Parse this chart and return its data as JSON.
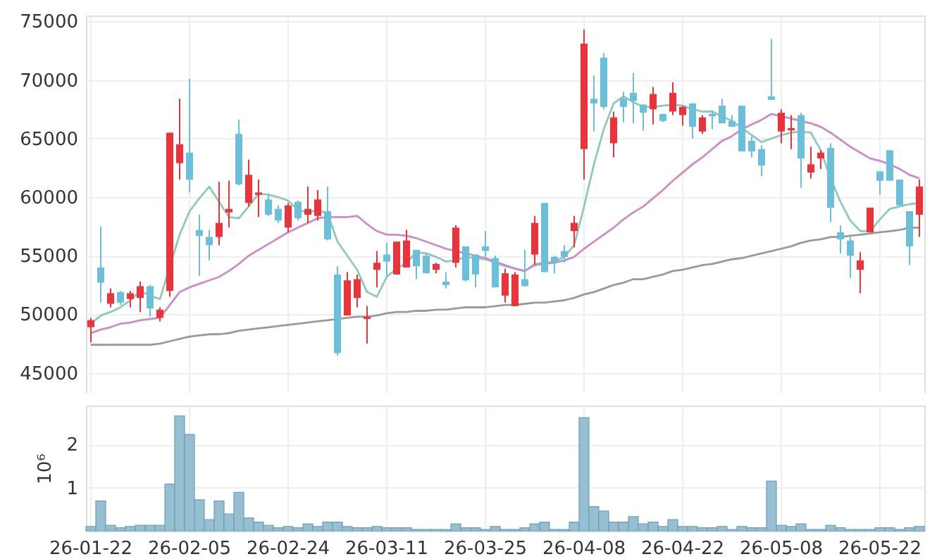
{
  "chart_data": [
    {
      "type": "candlestick",
      "ohlc": [
        [
          48900,
          49700,
          47600,
          49500
        ],
        [
          54000,
          57500,
          51000,
          52700
        ],
        [
          50900,
          52200,
          50600,
          51800
        ],
        [
          51900,
          52000,
          50800,
          51000
        ],
        [
          51300,
          52000,
          50600,
          51800
        ],
        [
          51400,
          52800,
          50200,
          52400
        ],
        [
          52400,
          52500,
          49800,
          50500
        ],
        [
          49700,
          50600,
          49400,
          50400
        ],
        [
          52000,
          65500,
          51500,
          65500
        ],
        [
          62900,
          68400,
          61500,
          64500
        ],
        [
          63800,
          70100,
          60400,
          61500
        ],
        [
          57200,
          58500,
          53300,
          56700
        ],
        [
          56600,
          57200,
          54600,
          55900
        ],
        [
          56600,
          61300,
          55900,
          57800
        ],
        [
          58700,
          61400,
          57400,
          59000
        ],
        [
          65400,
          66600,
          61000,
          61100
        ],
        [
          59500,
          63200,
          59200,
          61900
        ],
        [
          60200,
          61500,
          58300,
          60400
        ],
        [
          59800,
          60300,
          58400,
          58500
        ],
        [
          59000,
          59300,
          57800,
          58000
        ],
        [
          57400,
          59500,
          57000,
          59300
        ],
        [
          59600,
          59700,
          58000,
          58200
        ],
        [
          58500,
          60900,
          57800,
          59000
        ],
        [
          58400,
          60600,
          58000,
          59800
        ],
        [
          58800,
          60900,
          56300,
          56400
        ],
        [
          53400,
          54100,
          46500,
          46700
        ],
        [
          49900,
          53600,
          49900,
          52900
        ],
        [
          51400,
          53400,
          50600,
          53000
        ],
        [
          49600,
          50700,
          47500,
          49800
        ],
        [
          53800,
          55400,
          52300,
          54400
        ],
        [
          55100,
          56100,
          53200,
          54500
        ],
        [
          53400,
          56200,
          53400,
          56200
        ],
        [
          54000,
          57200,
          54000,
          56300
        ],
        [
          55500,
          55500,
          53000,
          54100
        ],
        [
          55000,
          55200,
          53500,
          53500
        ],
        [
          53800,
          54400,
          53500,
          54300
        ],
        [
          52800,
          53600,
          52200,
          52500
        ],
        [
          54400,
          57600,
          54000,
          57400
        ],
        [
          55800,
          55800,
          52800,
          52900
        ],
        [
          55100,
          55100,
          52300,
          53400
        ],
        [
          55800,
          57100,
          54700,
          55400
        ],
        [
          54800,
          55000,
          52300,
          52300
        ],
        [
          51600,
          53900,
          51000,
          53500
        ],
        [
          50700,
          53600,
          50700,
          53400
        ],
        [
          53000,
          55500,
          52400,
          52400
        ],
        [
          55100,
          58400,
          54200,
          57800
        ],
        [
          59500,
          59500,
          53600,
          53600
        ],
        [
          54900,
          55000,
          53500,
          54400
        ],
        [
          55400,
          55900,
          54400,
          54900
        ],
        [
          57100,
          58400,
          55700,
          57800
        ],
        [
          64100,
          74300,
          61500,
          73100
        ],
        [
          68400,
          70400,
          65600,
          68000
        ],
        [
          71900,
          72300,
          67500,
          67700
        ],
        [
          64600,
          67300,
          63400,
          66800
        ],
        [
          68400,
          69000,
          66400,
          67700
        ],
        [
          68900,
          70600,
          66300,
          68200
        ],
        [
          67900,
          67900,
          65700,
          67200
        ],
        [
          67500,
          69400,
          66200,
          68800
        ],
        [
          67100,
          67100,
          66400,
          66500
        ],
        [
          67300,
          69800,
          67000,
          68900
        ],
        [
          67000,
          67800,
          66100,
          67700
        ],
        [
          68000,
          68000,
          65000,
          66000
        ],
        [
          65600,
          67000,
          65400,
          66800
        ],
        [
          67100,
          67400,
          65800,
          66900
        ],
        [
          67800,
          68400,
          66300,
          66300
        ],
        [
          66500,
          67000,
          66000,
          66000
        ],
        [
          67800,
          67800,
          63900,
          63900
        ],
        [
          64800,
          65200,
          63400,
          63900
        ],
        [
          64100,
          64400,
          61800,
          62700
        ],
        [
          68600,
          73500,
          68300,
          68300
        ],
        [
          65600,
          67500,
          64600,
          67200
        ],
        [
          65700,
          67000,
          64100,
          65900
        ],
        [
          67000,
          67200,
          60800,
          63300
        ],
        [
          62100,
          64300,
          61600,
          62800
        ],
        [
          63300,
          64000,
          62400,
          63800
        ],
        [
          64200,
          64600,
          57900,
          59100
        ],
        [
          57000,
          57600,
          55200,
          56400
        ],
        [
          56300,
          56600,
          53100,
          55000
        ],
        [
          53800,
          55300,
          51800,
          54600
        ],
        [
          57000,
          59100,
          57000,
          59100
        ],
        [
          62200,
          62200,
          60200,
          61400
        ],
        [
          64000,
          64000,
          61400,
          61400
        ],
        [
          61500,
          61500,
          59300,
          59300
        ],
        [
          58800,
          58800,
          54200,
          55800
        ],
        [
          58500,
          61500,
          56600,
          60900
        ]
      ],
      "colors": [
        "#e8343a",
        "#6bbfd9",
        "#e8343a",
        "#6bbfd9",
        "#e8343a",
        "#e8343a",
        "#6bbfd9",
        "#e8343a",
        "#e8343a",
        "#e8343a",
        "#6bbfd9",
        "#6bbfd9",
        "#6bbfd9",
        "#e8343a",
        "#e8343a",
        "#6bbfd9",
        "#e8343a",
        "#e8343a",
        "#6bbfd9",
        "#6bbfd9",
        "#e8343a",
        "#6bbfd9",
        "#e8343a",
        "#e8343a",
        "#6bbfd9",
        "#6bbfd9",
        "#e8343a",
        "#e8343a",
        "#e8343a",
        "#e8343a",
        "#6bbfd9",
        "#e8343a",
        "#e8343a",
        "#6bbfd9",
        "#6bbfd9",
        "#e8343a",
        "#6bbfd9",
        "#e8343a",
        "#6bbfd9",
        "#6bbfd9",
        "#6bbfd9",
        "#6bbfd9",
        "#e8343a",
        "#e8343a",
        "#6bbfd9",
        "#e8343a",
        "#6bbfd9",
        "#6bbfd9",
        "#6bbfd9",
        "#e8343a",
        "#e8343a",
        "#6bbfd9",
        "#6bbfd9",
        "#e8343a",
        "#6bbfd9",
        "#6bbfd9",
        "#6bbfd9",
        "#e8343a",
        "#6bbfd9",
        "#e8343a",
        "#e8343a",
        "#6bbfd9",
        "#e8343a",
        "#6bbfd9",
        "#6bbfd9",
        "#6bbfd9",
        "#6bbfd9",
        "#6bbfd9",
        "#6bbfd9",
        "#6bbfd9",
        "#e8343a",
        "#e8343a",
        "#6bbfd9",
        "#e8343a",
        "#e8343a",
        "#6bbfd9",
        "#6bbfd9",
        "#6bbfd9",
        "#e8343a",
        "#e8343a",
        "#6bbfd9",
        "#6bbfd9",
        "#6bbfd9",
        "#6bbfd9",
        "#e8343a"
      ],
      "series": [
        {
          "type": "line",
          "color": "#8ec9bd",
          "values": [
            49200,
            49900,
            50200,
            50600,
            51200,
            52000,
            51600,
            51300,
            null,
            56800,
            58800,
            59900,
            60900,
            59600,
            58300,
            58200,
            59200,
            60300,
            60200,
            60000,
            59700,
            58900,
            58700,
            58900,
            58600,
            56200,
            55000,
            53800,
            51900,
            51500,
            53200,
            53900,
            54400,
            55300,
            55200,
            54900,
            54500,
            54600,
            54900,
            54800,
            54700,
            54400,
            54100,
            53900,
            53700,
            54300,
            54400,
            54500,
            54900,
            55900,
            59200,
            62800,
            65800,
            68000,
            68600,
            68100,
            67700,
            67700,
            67800,
            67900,
            67800,
            67500,
            67300,
            67300,
            66900,
            66500,
            65900,
            65300,
            64700,
            65000,
            65300,
            65500,
            65600,
            65500,
            64000,
            61600,
            59600,
            58000,
            57100,
            57100,
            58100,
            59000,
            59200,
            59400,
            59500
          ]
        },
        {
          "type": "line",
          "color": "#cc8dc6",
          "values": [
            48400,
            48700,
            48900,
            49200,
            49300,
            49500,
            49600,
            49700,
            50800,
            51900,
            52300,
            52600,
            52900,
            53200,
            53700,
            54300,
            55000,
            55500,
            56000,
            56500,
            57000,
            57400,
            57800,
            58200,
            58300,
            58300,
            58300,
            58400,
            57700,
            57100,
            56800,
            56800,
            56700,
            56500,
            56200,
            55900,
            55600,
            55400,
            55200,
            55000,
            54800,
            54500,
            54200,
            53900,
            53700,
            54200,
            54300,
            54400,
            54600,
            54900,
            55600,
            56200,
            56800,
            57400,
            58100,
            58700,
            59200,
            59900,
            60600,
            61400,
            62100,
            62800,
            63400,
            64100,
            64800,
            65200,
            65800,
            66200,
            66600,
            67100,
            66900,
            66700,
            66500,
            66300,
            66000,
            65500,
            64900,
            64300,
            63800,
            63300,
            63100,
            62800,
            62400,
            61900,
            61600
          ]
        },
        {
          "type": "line",
          "color": "#9a9a9a",
          "values": [
            47400,
            47400,
            47400,
            47400,
            47400,
            47400,
            47400,
            47500,
            47700,
            47900,
            48100,
            48200,
            48300,
            48300,
            48400,
            48600,
            48700,
            48800,
            48900,
            49000,
            49100,
            49200,
            49300,
            49400,
            49500,
            49600,
            49700,
            49800,
            49800,
            49900,
            50100,
            50200,
            50200,
            50300,
            50300,
            50400,
            50400,
            50500,
            50600,
            50600,
            50600,
            50700,
            50800,
            50800,
            50900,
            51000,
            51000,
            51100,
            51200,
            51400,
            51700,
            51900,
            52200,
            52500,
            52700,
            53000,
            53000,
            53200,
            53400,
            53700,
            53800,
            54000,
            54200,
            54300,
            54500,
            54700,
            54800,
            55000,
            55200,
            55400,
            55600,
            55800,
            56100,
            56300,
            56400,
            56600,
            56600,
            56700,
            56800,
            56900,
            57000,
            57100,
            57200,
            57400,
            57400
          ]
        }
      ],
      "ylim": [
        43300,
        75500
      ],
      "yticks": [
        45000,
        50000,
        55000,
        60000,
        65000,
        70000,
        75000
      ],
      "grid": true,
      "tick_labels": "y"
    },
    {
      "type": "bar",
      "categories": [
        "26-01-22",
        null,
        null,
        null,
        null,
        null,
        null,
        null,
        null,
        null,
        "26-02-05",
        null,
        null,
        null,
        null,
        null,
        null,
        null,
        null,
        null,
        "26-02-24",
        null,
        null,
        null,
        null,
        null,
        null,
        null,
        null,
        null,
        "26-03-11",
        null,
        null,
        null,
        null,
        null,
        null,
        null,
        null,
        null,
        "26-03-25",
        null,
        null,
        null,
        null,
        null,
        null,
        null,
        null,
        null,
        "26-04-08",
        null,
        null,
        null,
        null,
        null,
        null,
        null,
        null,
        null,
        "26-04-22",
        null,
        null,
        null,
        null,
        null,
        null,
        null,
        null,
        null,
        "26-05-08",
        null,
        null,
        null,
        null,
        null,
        null,
        null,
        null,
        null,
        "26-05-22",
        null,
        null,
        null,
        null
      ],
      "color": "#97bfd2",
      "values": [
        0.1,
        0.69,
        0.13,
        0.07,
        0.1,
        0.13,
        0.13,
        0.13,
        1.08,
        2.66,
        2.23,
        0.72,
        0.26,
        0.69,
        0.39,
        0.89,
        0.3,
        0.2,
        0.13,
        0.07,
        0.1,
        0.07,
        0.16,
        0.1,
        0.2,
        0.2,
        0.1,
        0.07,
        0.07,
        0.1,
        0.07,
        0.07,
        0.07,
        0.03,
        0.03,
        0.03,
        0.03,
        0.16,
        0.07,
        0.07,
        0.03,
        0.1,
        0.03,
        0.03,
        0.07,
        0.16,
        0.2,
        0.03,
        0.03,
        0.2,
        2.62,
        0.56,
        0.46,
        0.2,
        0.2,
        0.33,
        0.16,
        0.2,
        0.1,
        0.26,
        0.1,
        0.1,
        0.07,
        0.07,
        0.1,
        0.03,
        0.1,
        0.07,
        0.07,
        1.15,
        0.13,
        0.1,
        0.16,
        0.03,
        0.03,
        0.13,
        0.07,
        0.03,
        0.03,
        0.03,
        0.07,
        0.07,
        0.03,
        0.07,
        0.1
      ],
      "ylabel": "10⁶",
      "ylim": [
        0,
        2.9
      ],
      "yticks": [
        1,
        2
      ],
      "grid": true
    }
  ]
}
